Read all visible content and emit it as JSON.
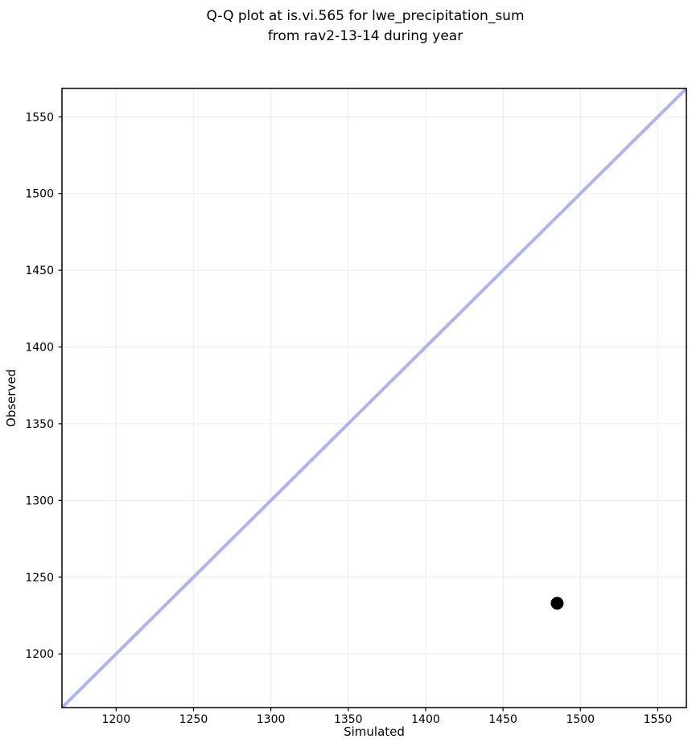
{
  "chart_data": {
    "type": "scatter",
    "title": "Q-Q plot at is.vi.565 for lwe_precipitation_sum\nfrom rav2-13-14 during year",
    "xlabel": "Simulated",
    "ylabel": "Observed",
    "xlim": [
      1165,
      1568.5
    ],
    "ylim": [
      1165,
      1568.5
    ],
    "xticks": [
      1200,
      1250,
      1300,
      1350,
      1400,
      1450,
      1500,
      1550
    ],
    "yticks": [
      1200,
      1250,
      1300,
      1350,
      1400,
      1450,
      1500,
      1550
    ],
    "grid": true,
    "legend": "none",
    "points": [
      {
        "x": 1485,
        "y": 1233
      }
    ],
    "identity_line": {
      "x_start": 1165,
      "y_start": 1165,
      "x_end": 1568.5,
      "y_end": 1568.5
    },
    "colors": {
      "identity_line": "#aeb4f2",
      "point": "#000000",
      "grid": "#efefef",
      "spine": "#000000",
      "text": "#000000",
      "background": "#ffffff"
    },
    "style": {
      "identity_line_width": 4,
      "point_radius": 8,
      "grid_width": 1.3,
      "spine_width": 1.5,
      "tick_length": 4.5,
      "tick_width": 1.2
    }
  }
}
